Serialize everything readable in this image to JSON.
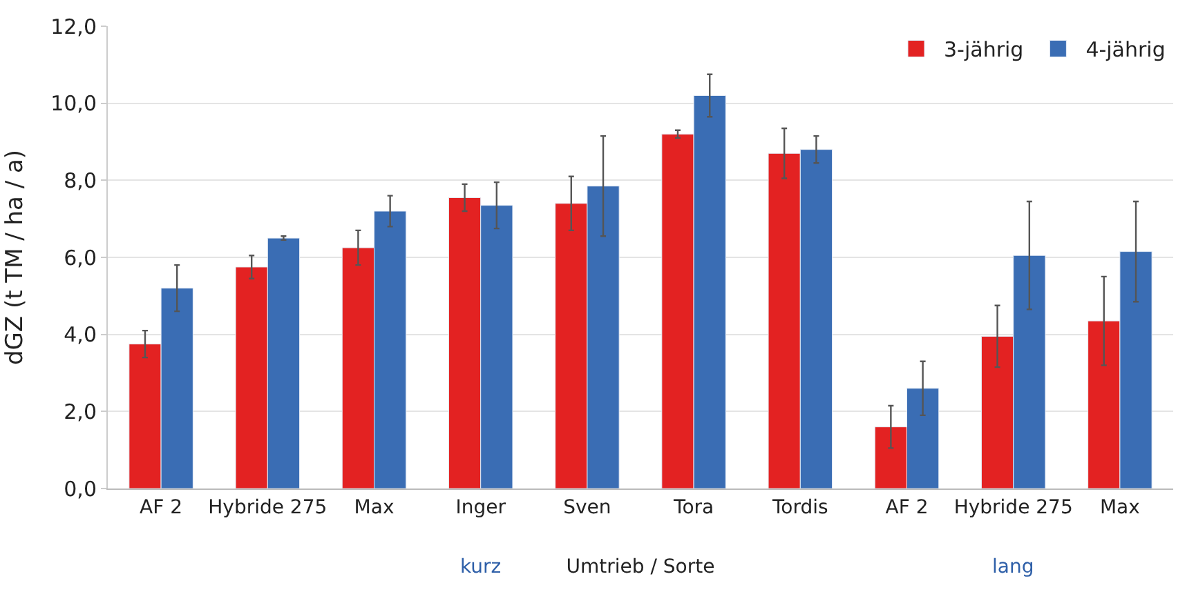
{
  "chart_data": {
    "type": "bar",
    "ylabel": "dGZ (t TM / ha / a)",
    "xlabel": "Umtrieb / Sorte",
    "categories": [
      "AF 2",
      "Hybride 275",
      "Max",
      "Inger",
      "Sven",
      "Tora",
      "Tordis",
      "AF 2",
      "Hybride 275",
      "Max"
    ],
    "series": [
      {
        "name": "3-jährig",
        "color": "#e32222",
        "values": [
          3.75,
          5.75,
          6.25,
          7.55,
          7.4,
          9.2,
          8.7,
          1.6,
          3.95,
          4.35
        ],
        "errors": [
          0.35,
          0.3,
          0.45,
          0.35,
          0.7,
          0.1,
          0.65,
          0.55,
          0.8,
          1.15
        ]
      },
      {
        "name": "4-jährig",
        "color": "#3a6db4",
        "values": [
          5.2,
          6.5,
          7.2,
          7.35,
          7.85,
          10.2,
          8.8,
          2.6,
          6.05,
          6.15
        ],
        "errors": [
          0.6,
          0.05,
          0.4,
          0.6,
          1.3,
          0.55,
          0.35,
          0.7,
          1.4,
          1.3
        ]
      }
    ],
    "ylim": [
      0,
      12
    ],
    "yticks": [
      {
        "value": 0,
        "label": "0,0"
      },
      {
        "value": 2,
        "label": "2,0"
      },
      {
        "value": 4,
        "label": "4,0"
      },
      {
        "value": 6,
        "label": "6,0"
      },
      {
        "value": 8,
        "label": "8,0"
      },
      {
        "value": 10,
        "label": "10,0"
      },
      {
        "value": 12,
        "label": "12,0"
      }
    ],
    "annotations": [
      "kurz",
      "lang"
    ],
    "grid": "y",
    "legend": "top right"
  }
}
